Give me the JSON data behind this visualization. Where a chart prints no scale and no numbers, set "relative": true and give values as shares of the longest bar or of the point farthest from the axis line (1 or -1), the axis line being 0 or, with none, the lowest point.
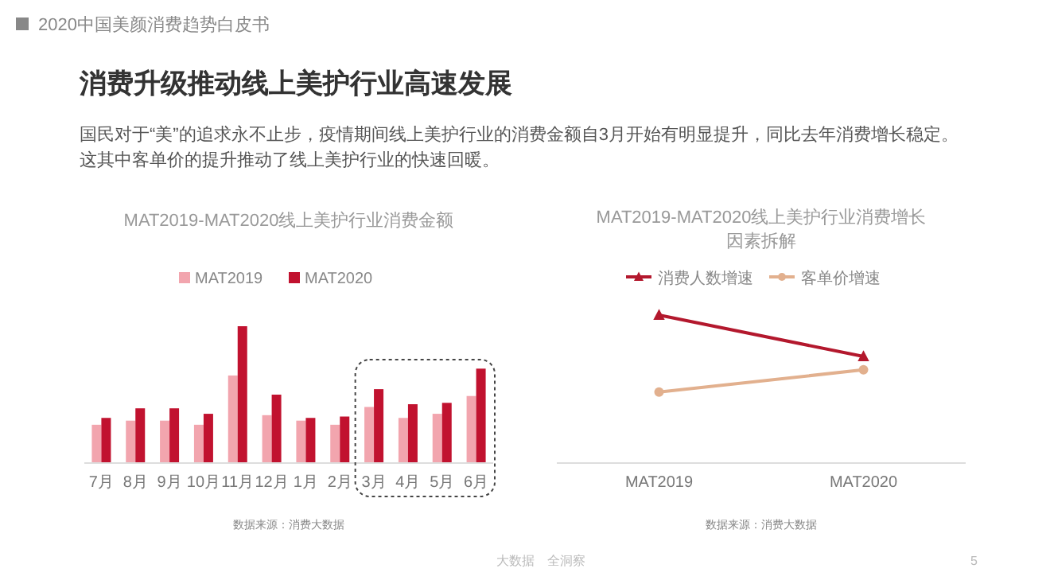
{
  "chart_data": [
    {
      "type": "other",
      "title": "消费升级推动线上美护行业高速发展",
      "subtitle": "国民对于“美”的追求永不止步，疫情期间线上美护行业的消费金额自3月开始有明显提升，同比去年消费增长稳定。这其中客单价的提升推动了线上美护行业的快速回暖。",
      "annotations": [
        "2020中国美颜消费趋势白皮书",
        "大数据　全洞察",
        "5"
      ]
    },
    {
      "type": "bar",
      "title": "MAT2019-MAT2020线上美护行业消费金额",
      "categories": [
        "7月",
        "8月",
        "9月",
        "10月",
        "11月",
        "12月",
        "1月",
        "2月",
        "3月",
        "4月",
        "5月",
        "6月"
      ],
      "relative": true,
      "legend": "top",
      "grid": false,
      "series": [
        {
          "name": "MAT2019",
          "color": "#f2a5ae",
          "values": [
            0.28,
            0.31,
            0.31,
            0.28,
            0.64,
            0.35,
            0.31,
            0.28,
            0.41,
            0.33,
            0.36,
            0.49
          ]
        },
        {
          "name": "MAT2020",
          "color": "#c1122f",
          "values": [
            0.33,
            0.4,
            0.4,
            0.36,
            1,
            0.5,
            0.33,
            0.34,
            0.54,
            0.43,
            0.44,
            0.69
          ]
        }
      ],
      "annotations": [
        "数据来源：消费大数据"
      ]
    },
    {
      "type": "line",
      "title": "MAT2019-MAT2020线上美护行业消费增长因素拆解",
      "categories": [
        "MAT2019",
        "MAT2020"
      ],
      "relative": true,
      "legend": "top",
      "grid": false,
      "series": [
        {
          "name": "消费人数增速",
          "color": "#b3182d",
          "marker": "triangle",
          "values": [
            1,
            0.72
          ]
        },
        {
          "name": "客单价增速",
          "color": "#e2b08e",
          "marker": "circle",
          "values": [
            0.48,
            0.63
          ]
        }
      ],
      "annotations": [
        "数据来源：消费大数据"
      ]
    }
  ]
}
